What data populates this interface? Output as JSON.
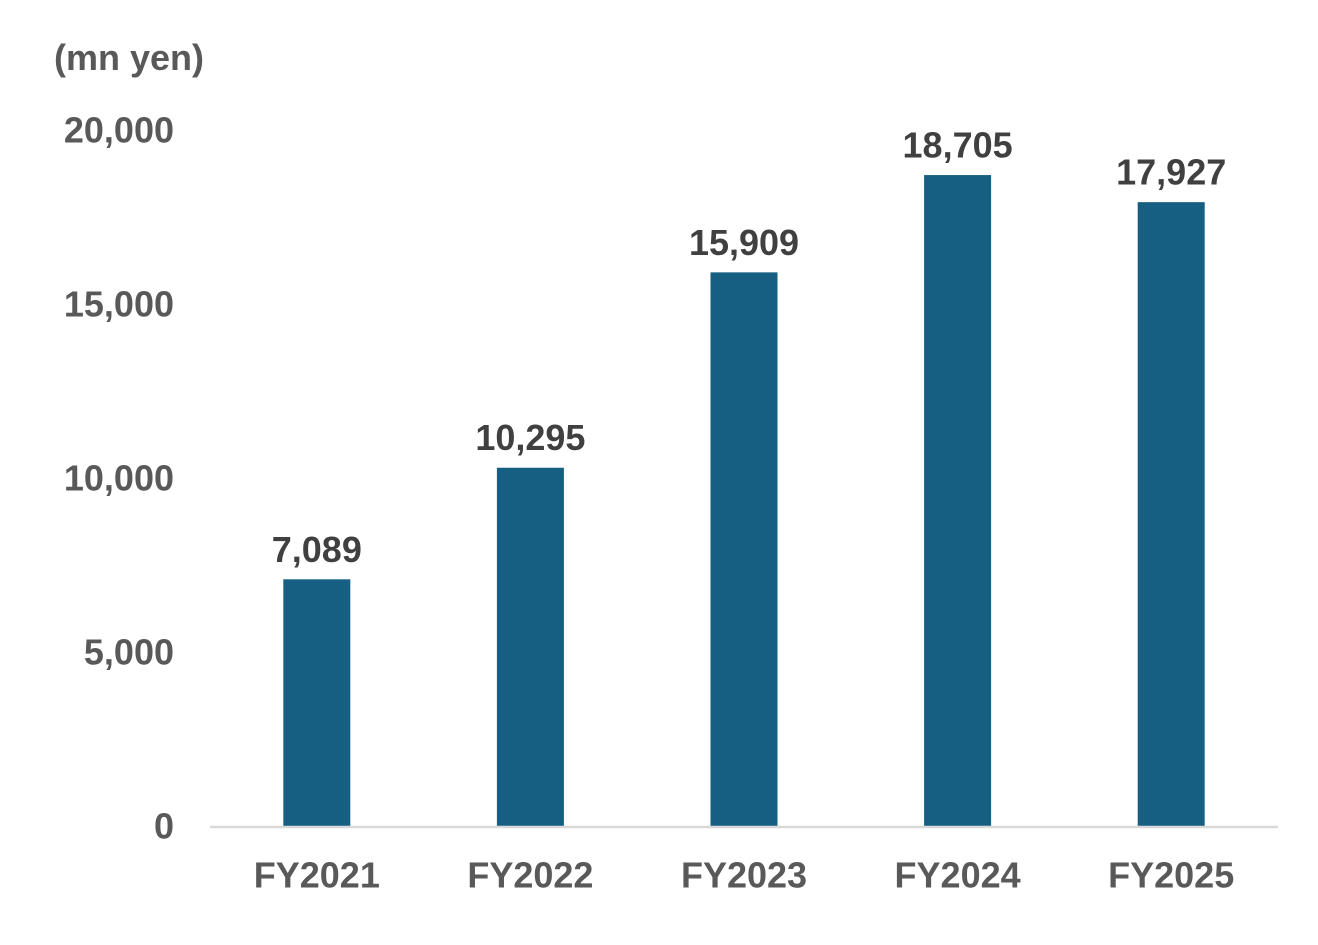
{
  "chart_data": {
    "type": "bar",
    "title": "",
    "unit_label": "(mn yen)",
    "xlabel": "",
    "ylabel": "",
    "categories": [
      "FY2021",
      "FY2022",
      "FY2023",
      "FY2024",
      "FY2025"
    ],
    "values": [
      7089,
      10295,
      15909,
      18705,
      17927
    ],
    "value_labels": [
      "7,089",
      "10,295",
      "15,909",
      "18,705",
      "17,927"
    ],
    "ylim": [
      0,
      20000
    ],
    "yticks": [
      0,
      5000,
      10000,
      15000,
      20000
    ],
    "ytick_labels": [
      "0",
      "5,000",
      "10,000",
      "15,000",
      "20,000"
    ],
    "grid": false,
    "legend": "none",
    "colors": {
      "bar": "#165F82",
      "axis": "#D9D9D9"
    }
  }
}
